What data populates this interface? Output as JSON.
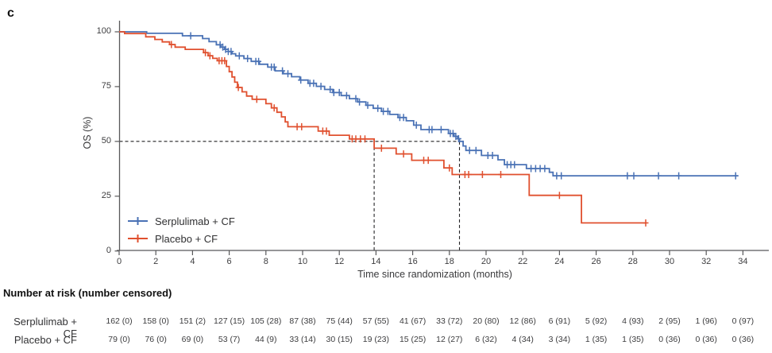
{
  "panel_label": "c",
  "colors": {
    "serplulimab": "#4a72b5",
    "placebo": "#e0502f",
    "axis": "#58585a",
    "dashed_line": "#232325",
    "text": "#3a3a3c"
  },
  "chart_data": {
    "type": "line",
    "subtype": "kaplan-meier",
    "title": "",
    "xlabel": "Time since randomization (months)",
    "ylabel": "OS (%)",
    "xlim": [
      0,
      35.5
    ],
    "ylim": [
      0,
      100
    ],
    "xticks": [
      0,
      2,
      4,
      6,
      8,
      10,
      12,
      14,
      16,
      18,
      20,
      22,
      24,
      26,
      28,
      30,
      32,
      34
    ],
    "yticks": [
      100,
      75,
      50,
      25,
      0
    ],
    "grid": false,
    "legend_position": "inside-lower-left",
    "median_markers": {
      "os_percent": 50,
      "placebo_median_months": 13.9,
      "serplulimab_median_months": 18.55
    },
    "series": [
      {
        "name": "Serplulimab + CF",
        "color": "#4a72b5",
        "points": [
          [
            0,
            100
          ],
          [
            1.5,
            99.3
          ],
          [
            3.45,
            98.2
          ],
          [
            4.55,
            96.9
          ],
          [
            4.9,
            95.5
          ],
          [
            5.3,
            94.1
          ],
          [
            5.55,
            93.0
          ],
          [
            5.75,
            92.0
          ],
          [
            5.95,
            91.0
          ],
          [
            6.15,
            90.0
          ],
          [
            6.35,
            89.0
          ],
          [
            6.8,
            87.8
          ],
          [
            7.2,
            86.5
          ],
          [
            7.65,
            85.2
          ],
          [
            8.1,
            83.9
          ],
          [
            8.5,
            82.2
          ],
          [
            8.95,
            80.9
          ],
          [
            9.4,
            79.5
          ],
          [
            9.85,
            78.0
          ],
          [
            10.3,
            76.5
          ],
          [
            10.75,
            75.1
          ],
          [
            11.2,
            73.7
          ],
          [
            11.65,
            72.3
          ],
          [
            12.1,
            70.9
          ],
          [
            12.55,
            69.5
          ],
          [
            13.0,
            68.0
          ],
          [
            13.45,
            66.5
          ],
          [
            13.85,
            65.1
          ],
          [
            14.3,
            63.7
          ],
          [
            14.75,
            62.3
          ],
          [
            15.2,
            60.9
          ],
          [
            15.65,
            59.4
          ],
          [
            16.05,
            57.4
          ],
          [
            16.45,
            55.4
          ],
          [
            17.95,
            53.6
          ],
          [
            18.25,
            52.3
          ],
          [
            18.45,
            51.2
          ],
          [
            18.55,
            50.0
          ],
          [
            18.75,
            47.9
          ],
          [
            18.9,
            45.9
          ],
          [
            19.75,
            43.6
          ],
          [
            20.65,
            41.6
          ],
          [
            21.0,
            39.4
          ],
          [
            22.2,
            37.6
          ],
          [
            23.45,
            35.9
          ],
          [
            23.65,
            34.3
          ]
        ],
        "end_month": 33.75,
        "censor_times": [
          3.9,
          5.5,
          5.65,
          5.8,
          5.95,
          6.1,
          6.55,
          7.0,
          7.45,
          7.6,
          8.3,
          8.45,
          8.9,
          9.2,
          9.9,
          10.4,
          10.6,
          11.0,
          11.5,
          11.7,
          12.0,
          12.4,
          12.9,
          13.1,
          13.55,
          14.1,
          14.4,
          14.65,
          15.3,
          15.5,
          16.2,
          16.9,
          17.05,
          17.55,
          18.05,
          18.2,
          18.35,
          18.5,
          19.1,
          19.45,
          20.1,
          20.35,
          21.15,
          21.35,
          21.55,
          22.45,
          22.7,
          22.95,
          23.2,
          23.85,
          24.1,
          27.7,
          28.05,
          29.4,
          30.5,
          33.6
        ]
      },
      {
        "name": "Placebo + CF",
        "color": "#e0502f",
        "points": [
          [
            0,
            100
          ],
          [
            0.3,
            99.2
          ],
          [
            1.45,
            97.7
          ],
          [
            1.95,
            96.5
          ],
          [
            2.35,
            95.4
          ],
          [
            2.75,
            94.2
          ],
          [
            3.05,
            93.0
          ],
          [
            3.6,
            92.0
          ],
          [
            4.6,
            90.5
          ],
          [
            4.85,
            89.1
          ],
          [
            5.1,
            87.9
          ],
          [
            5.35,
            86.8
          ],
          [
            5.85,
            84.2
          ],
          [
            6.0,
            81.8
          ],
          [
            6.15,
            79.4
          ],
          [
            6.3,
            77.0
          ],
          [
            6.45,
            74.6
          ],
          [
            6.7,
            72.6
          ],
          [
            6.95,
            70.7
          ],
          [
            7.25,
            69.2
          ],
          [
            8.0,
            67.2
          ],
          [
            8.3,
            65.3
          ],
          [
            8.6,
            63.3
          ],
          [
            8.85,
            61.2
          ],
          [
            9.05,
            58.9
          ],
          [
            9.2,
            56.7
          ],
          [
            10.85,
            54.7
          ],
          [
            11.45,
            52.8
          ],
          [
            12.55,
            51.1
          ],
          [
            13.9,
            46.9
          ],
          [
            15.1,
            44.3
          ],
          [
            15.95,
            41.4
          ],
          [
            17.7,
            37.9
          ],
          [
            18.15,
            34.9
          ],
          [
            22.35,
            25.4
          ],
          [
            25.2,
            12.8
          ]
        ],
        "end_month": 28.75,
        "censor_times": [
          2.85,
          4.7,
          4.95,
          5.45,
          5.6,
          5.75,
          6.5,
          7.5,
          8.45,
          9.7,
          9.95,
          11.1,
          11.3,
          12.7,
          12.9,
          13.15,
          13.4,
          14.3,
          15.5,
          16.6,
          16.85,
          18.0,
          18.85,
          19.05,
          19.8,
          20.8,
          24.0,
          28.7
        ]
      }
    ]
  },
  "legend": {
    "items": [
      {
        "label": "Serplulimab + CF"
      },
      {
        "label": "Placebo + CF"
      }
    ]
  },
  "risk_table": {
    "title": "Number at risk (number censored)",
    "months": [
      0,
      2,
      4,
      6,
      8,
      10,
      12,
      14,
      16,
      18,
      20,
      22,
      24,
      26,
      28,
      30,
      32,
      34
    ],
    "rows": [
      {
        "label": "Serplulimab + CF",
        "values": [
          "162 (0)",
          "158 (0)",
          "151 (2)",
          "127 (15)",
          "105 (28)",
          "87 (38)",
          "75 (44)",
          "57 (55)",
          "41 (67)",
          "33 (72)",
          "20 (80)",
          "12 (86)",
          "6 (91)",
          "5 (92)",
          "4 (93)",
          "2 (95)",
          "1 (96)",
          "0 (97)"
        ]
      },
      {
        "label": "Placebo + CF",
        "values": [
          "79 (0)",
          "76 (0)",
          "69 (0)",
          "53 (7)",
          "44 (9)",
          "33 (14)",
          "30 (15)",
          "19 (23)",
          "15 (25)",
          "12 (27)",
          "6 (32)",
          "4 (34)",
          "3 (34)",
          "1 (35)",
          "1 (35)",
          "0 (36)",
          "0 (36)",
          "0 (36)"
        ]
      }
    ]
  }
}
